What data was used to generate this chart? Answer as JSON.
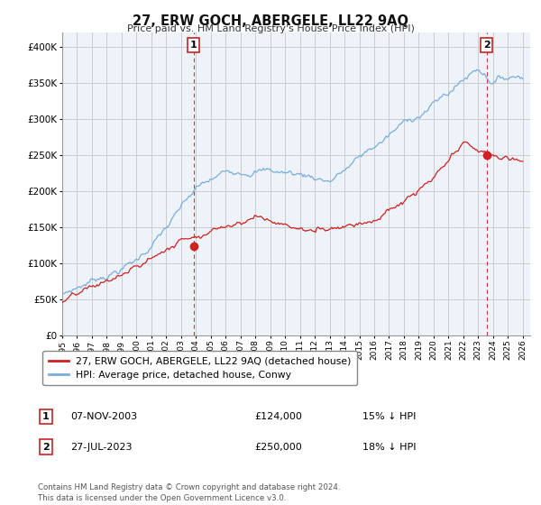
{
  "title": "27, ERW GOCH, ABERGELE, LL22 9AQ",
  "subtitle": "Price paid vs. HM Land Registry's House Price Index (HPI)",
  "ylim": [
    0,
    420000
  ],
  "yticks": [
    0,
    50000,
    100000,
    150000,
    200000,
    250000,
    300000,
    350000,
    400000
  ],
  "xlim_start": 1995.0,
  "xlim_end": 2026.5,
  "sale1_x": 2003.85,
  "sale1_y": 124000,
  "sale1_label": "1",
  "sale1_date": "07-NOV-2003",
  "sale1_price": "£124,000",
  "sale1_hpi": "15% ↓ HPI",
  "sale2_x": 2023.56,
  "sale2_y": 250000,
  "sale2_label": "2",
  "sale2_date": "27-JUL-2023",
  "sale2_price": "£250,000",
  "sale2_hpi": "18% ↓ HPI",
  "hpi_color": "#7aaddc",
  "price_color": "#cc2222",
  "grid_color": "#cccccc",
  "bg_color": "#eef3fa",
  "legend_label_price": "27, ERW GOCH, ABERGELE, LL22 9AQ (detached house)",
  "legend_label_hpi": "HPI: Average price, detached house, Conwy",
  "footer": "Contains HM Land Registry data © Crown copyright and database right 2024.\nThis data is licensed under the Open Government Licence v3.0."
}
